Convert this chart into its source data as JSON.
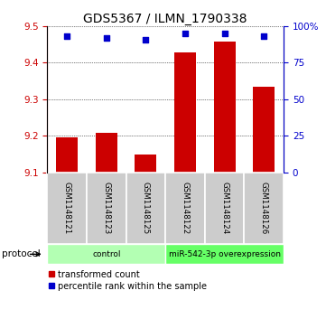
{
  "title": "GDS5367 / ILMN_1790338",
  "samples": [
    "GSM1148121",
    "GSM1148123",
    "GSM1148125",
    "GSM1148122",
    "GSM1148124",
    "GSM1148126"
  ],
  "transformed_counts": [
    9.195,
    9.208,
    9.148,
    9.428,
    9.457,
    9.335
  ],
  "percentile_ranks": [
    93,
    92,
    91,
    95,
    95,
    93
  ],
  "ylim_left": [
    9.1,
    9.5
  ],
  "yticks_left": [
    9.1,
    9.2,
    9.3,
    9.4,
    9.5
  ],
  "yticks_right": [
    0,
    25,
    50,
    75,
    100
  ],
  "ylim_right": [
    0,
    100
  ],
  "bar_color": "#cc0000",
  "dot_color": "#0000cc",
  "groups": [
    {
      "label": "control",
      "indices": [
        0,
        1,
        2
      ],
      "color": "#b3ffb3"
    },
    {
      "label": "miR-542-3p overexpression",
      "indices": [
        3,
        4,
        5
      ],
      "color": "#66ff66"
    }
  ],
  "protocol_label": "protocol",
  "legend_items": [
    {
      "label": "transformed count",
      "color": "#cc0000",
      "marker": "s"
    },
    {
      "label": "percentile rank within the sample",
      "color": "#0000cc",
      "marker": "s"
    }
  ],
  "bar_width": 0.55,
  "title_fontsize": 10,
  "tick_fontsize": 7.5,
  "bg_plot": "#ffffff",
  "bg_sample": "#cccccc"
}
